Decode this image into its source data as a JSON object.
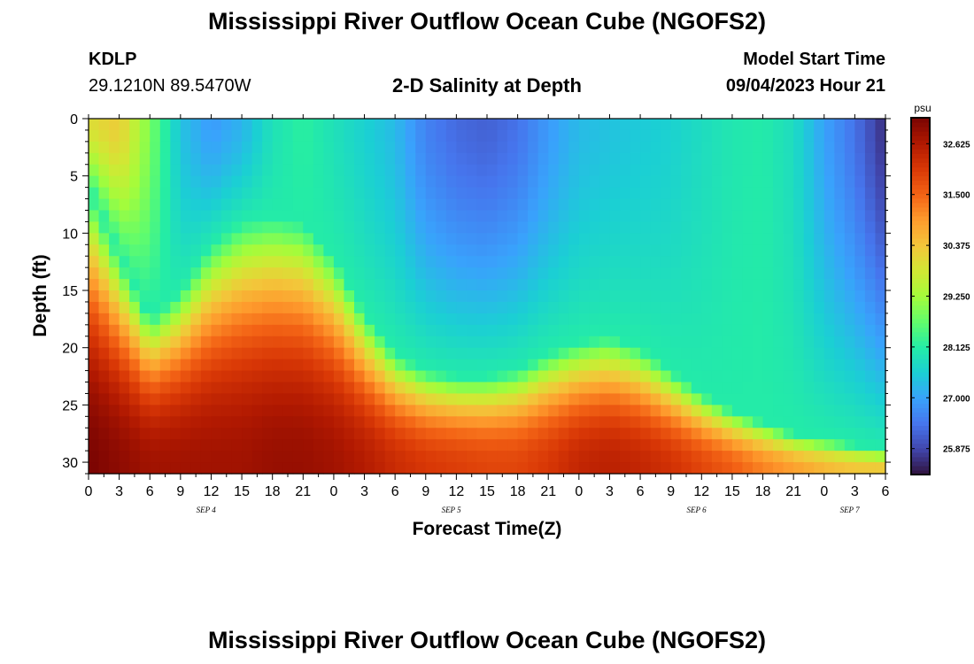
{
  "header": {
    "title": "Mississippi River Outflow Ocean Cube (NGOFS2)",
    "station": "KDLP",
    "coordinates": "29.1210N  89.5470W",
    "subtitle": "2-D Salinity at Depth",
    "model_start_label": "Model Start Time",
    "model_start_value": "09/04/2023 Hour 21"
  },
  "footer": {
    "title": "Mississippi River Outflow Ocean Cube (NGOFS2)"
  },
  "chart_data": {
    "type": "heatmap",
    "title": "2-D Salinity at Depth",
    "xlabel": "Forecast Time(Z)",
    "ylabel": "Depth (ft)",
    "colorbar_unit": "psu",
    "x_hours": [
      0,
      3,
      6,
      9,
      12,
      15,
      18,
      21,
      24,
      27,
      30,
      33,
      36,
      39,
      42,
      45,
      48,
      51,
      54,
      57,
      60,
      63,
      66,
      69,
      72,
      75,
      78
    ],
    "x_tick_labels": [
      "0",
      "3",
      "6",
      "9",
      "12",
      "15",
      "18",
      "21",
      "0",
      "3",
      "6",
      "9",
      "12",
      "15",
      "18",
      "21",
      "0",
      "3",
      "6",
      "9",
      "12",
      "15",
      "18",
      "21",
      "0",
      "3",
      "6"
    ],
    "date_labels": [
      {
        "label": "SEP 4",
        "hour": 11.5
      },
      {
        "label": "SEP 5",
        "hour": 35.5
      },
      {
        "label": "SEP 6",
        "hour": 59.5
      },
      {
        "label": "SEP 7",
        "hour": 74.5
      }
    ],
    "depth_ticks": [
      0,
      5,
      10,
      15,
      20,
      25,
      30
    ],
    "depth_range": [
      0,
      31
    ],
    "colorbar_ticks": [
      32.625,
      31.5,
      30.375,
      29.25,
      28.125,
      27.0,
      25.875
    ],
    "color_range": [
      25.3,
      33.2
    ],
    "surface_salinity_by_hour": [
      30.0,
      30.3,
      28.9,
      27.4,
      26.9,
      27.2,
      27.9,
      28.2,
      27.9,
      27.6,
      27.3,
      26.6,
      26.3,
      26.2,
      26.4,
      26.9,
      27.3,
      27.4,
      27.5,
      27.6,
      27.8,
      28.0,
      28.1,
      27.8,
      27.0,
      26.4,
      25.6
    ],
    "halocline_depth_ft_by_hour": [
      6.0,
      12.0,
      17.5,
      15.0,
      11.0,
      9.0,
      8.5,
      9.0,
      12.0,
      17.0,
      20.5,
      22.0,
      22.5,
      22.5,
      22.0,
      20.5,
      19.5,
      19.0,
      20.0,
      22.0,
      24.0,
      25.5,
      26.5,
      27.5,
      28.0,
      28.5,
      29.0
    ],
    "bottom_salinity_by_hour": [
      33.2,
      33.0,
      32.8,
      32.8,
      32.8,
      32.8,
      32.9,
      32.9,
      32.8,
      32.6,
      32.3,
      32.1,
      32.0,
      31.9,
      31.9,
      32.1,
      32.4,
      32.5,
      32.4,
      32.2,
      31.9,
      31.6,
      31.2,
      30.9,
      30.6,
      30.4,
      30.4
    ],
    "colormap": [
      "#30123b",
      "#4145ab",
      "#4675ed",
      "#39a2fc",
      "#1bcfd4",
      "#24eca6",
      "#61fc6c",
      "#a4fc3b",
      "#d1e834",
      "#f3c63a",
      "#fe9b2d",
      "#f36315",
      "#d93806",
      "#b11901",
      "#7a0402"
    ]
  }
}
